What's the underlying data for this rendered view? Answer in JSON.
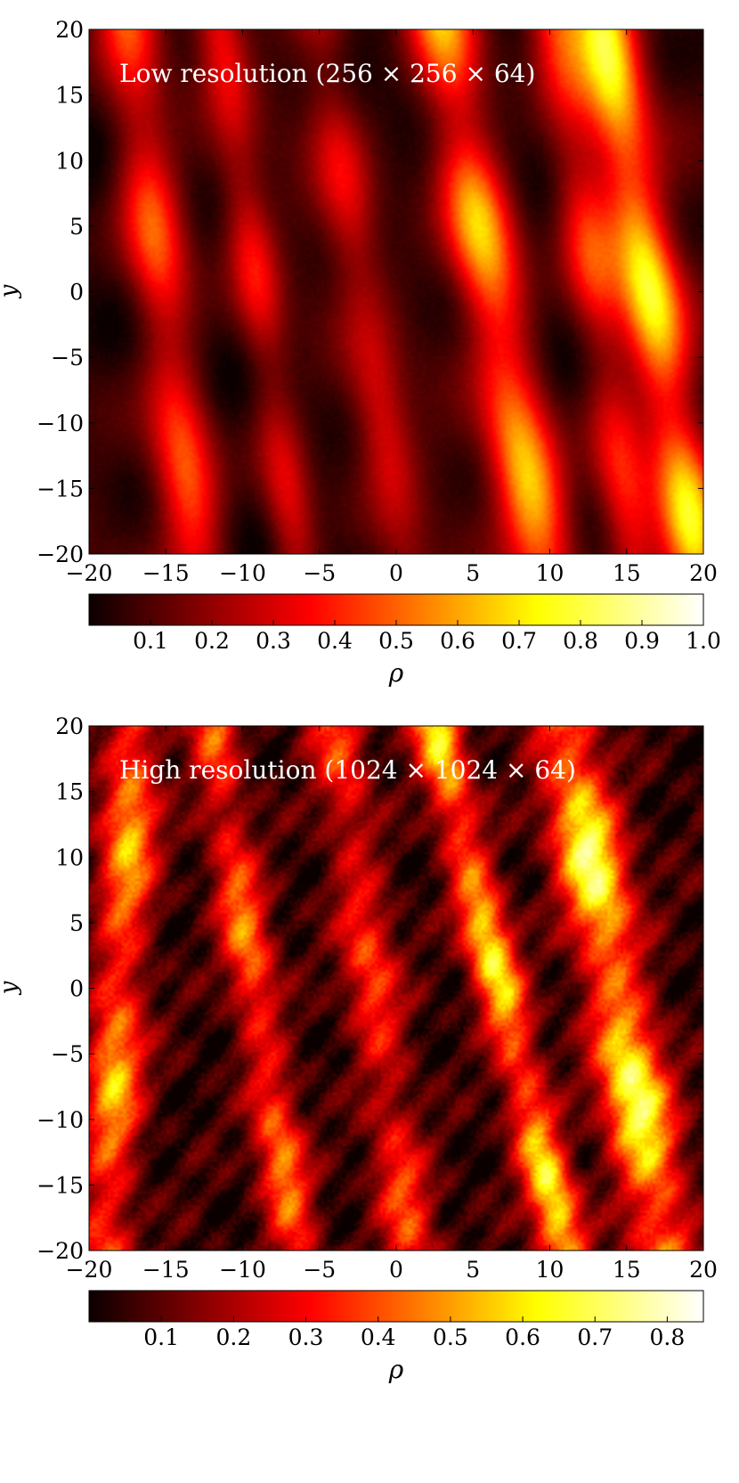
{
  "chart_data": [
    {
      "type": "heatmap",
      "title": "Low resolution (256 × 256 × 64)",
      "xlabel": "",
      "ylabel": "y",
      "xlim": [
        -20,
        20
      ],
      "ylim": [
        -20,
        20
      ],
      "x_ticks": [
        "−20",
        "−15",
        "−10",
        "−5",
        "0",
        "5",
        "10",
        "15",
        "20"
      ],
      "y_ticks": [
        "20",
        "15",
        "10",
        "5",
        "0",
        "−5",
        "−10",
        "−15",
        "−20"
      ],
      "colorbar": {
        "label": "ρ",
        "range": [
          0.0,
          1.0
        ],
        "ticks": [
          "0.1",
          "0.2",
          "0.3",
          "0.4",
          "0.5",
          "0.6",
          "0.7",
          "0.8",
          "0.9",
          "1.0"
        ],
        "colormap": "hot"
      },
      "streaks": [
        {
          "x_top": -17.5,
          "x_bot": -13.0,
          "width": 2.0,
          "amp": 0.55
        },
        {
          "x_top": -11.5,
          "x_bot": -6.5,
          "width": 1.6,
          "amp": 0.35
        },
        {
          "x_top": -5.0,
          "x_bot": 0.5,
          "width": 1.8,
          "amp": 0.3
        },
        {
          "x_top": 3.0,
          "x_bot": 9.5,
          "width": 2.2,
          "amp": 0.75
        },
        {
          "x_top": 10.5,
          "x_bot": 15.5,
          "width": 1.8,
          "amp": 0.45
        },
        {
          "x_top": 13.5,
          "x_bot": 19.5,
          "width": 2.0,
          "amp": 0.85
        }
      ]
    },
    {
      "type": "heatmap",
      "title": "High resolution (1024 × 1024 × 64)",
      "xlabel": "",
      "ylabel": "y",
      "xlim": [
        -20,
        20
      ],
      "ylim": [
        -20,
        20
      ],
      "x_ticks": [
        "−20",
        "−15",
        "−10",
        "−5",
        "0",
        "5",
        "10",
        "15",
        "20"
      ],
      "y_ticks": [
        "20",
        "15",
        "10",
        "5",
        "0",
        "−5",
        "−10",
        "−15",
        "−20"
      ],
      "colorbar": {
        "label": "ρ",
        "range": [
          0.0,
          0.85
        ],
        "ticks": [
          "0.1",
          "0.2",
          "0.3",
          "0.4",
          "0.5",
          "0.6",
          "0.7",
          "0.8"
        ],
        "colormap": "hot"
      },
      "streaks": [
        {
          "x_top": -17.0,
          "x_bot": -19.0,
          "width": 1.8,
          "amp": 0.6
        },
        {
          "x_top": -12.0,
          "x_bot": -6.5,
          "width": 1.6,
          "amp": 0.5
        },
        {
          "x_top": -4.0,
          "x_bot": 1.0,
          "width": 1.8,
          "amp": 0.4
        },
        {
          "x_top": 2.5,
          "x_bot": 11.0,
          "width": 1.6,
          "amp": 0.7
        },
        {
          "x_top": 11.0,
          "x_bot": 17.5,
          "width": 2.2,
          "amp": 0.8
        }
      ]
    }
  ]
}
